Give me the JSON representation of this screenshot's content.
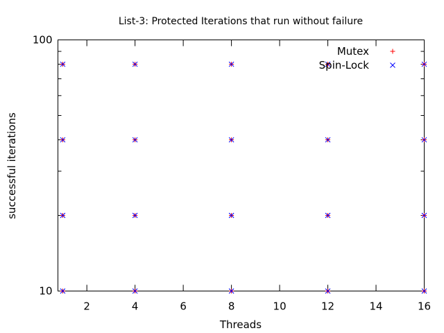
{
  "chart_data": {
    "type": "scatter",
    "title": "List-3: Protected Iterations that run without failure",
    "xlabel": "Threads",
    "ylabel": "successful iterations",
    "xlim": [
      0.8,
      16
    ],
    "ylim": [
      10,
      100
    ],
    "yscale": "log",
    "x_ticks": [
      2,
      4,
      6,
      8,
      10,
      12,
      14,
      16
    ],
    "y_ticks": [
      10,
      100
    ],
    "y_minor_ticks": [
      20,
      30,
      40,
      50,
      60,
      70,
      80,
      90
    ],
    "grid": false,
    "legend_position": "top-right",
    "series": [
      {
        "name": "Mutex",
        "marker": "+",
        "color": "#ff0000",
        "points": [
          {
            "x": 1,
            "y": 80
          },
          {
            "x": 1,
            "y": 40
          },
          {
            "x": 1,
            "y": 20
          },
          {
            "x": 1,
            "y": 10
          },
          {
            "x": 4,
            "y": 80
          },
          {
            "x": 4,
            "y": 40
          },
          {
            "x": 4,
            "y": 20
          },
          {
            "x": 4,
            "y": 10
          },
          {
            "x": 8,
            "y": 80
          },
          {
            "x": 8,
            "y": 40
          },
          {
            "x": 8,
            "y": 20
          },
          {
            "x": 8,
            "y": 10
          },
          {
            "x": 12,
            "y": 80
          },
          {
            "x": 12,
            "y": 40
          },
          {
            "x": 12,
            "y": 20
          },
          {
            "x": 12,
            "y": 10
          },
          {
            "x": 16,
            "y": 80
          },
          {
            "x": 16,
            "y": 40
          },
          {
            "x": 16,
            "y": 20
          },
          {
            "x": 16,
            "y": 10
          }
        ]
      },
      {
        "name": "Spin-Lock",
        "marker": "x",
        "color": "#0000ff",
        "points": [
          {
            "x": 1,
            "y": 80
          },
          {
            "x": 1,
            "y": 40
          },
          {
            "x": 1,
            "y": 20
          },
          {
            "x": 1,
            "y": 10
          },
          {
            "x": 4,
            "y": 80
          },
          {
            "x": 4,
            "y": 40
          },
          {
            "x": 4,
            "y": 20
          },
          {
            "x": 4,
            "y": 10
          },
          {
            "x": 8,
            "y": 80
          },
          {
            "x": 8,
            "y": 40
          },
          {
            "x": 8,
            "y": 20
          },
          {
            "x": 8,
            "y": 10
          },
          {
            "x": 12,
            "y": 80
          },
          {
            "x": 12,
            "y": 40
          },
          {
            "x": 12,
            "y": 20
          },
          {
            "x": 12,
            "y": 10
          },
          {
            "x": 16,
            "y": 80
          },
          {
            "x": 16,
            "y": 40
          },
          {
            "x": 16,
            "y": 20
          },
          {
            "x": 16,
            "y": 10
          }
        ]
      }
    ]
  }
}
